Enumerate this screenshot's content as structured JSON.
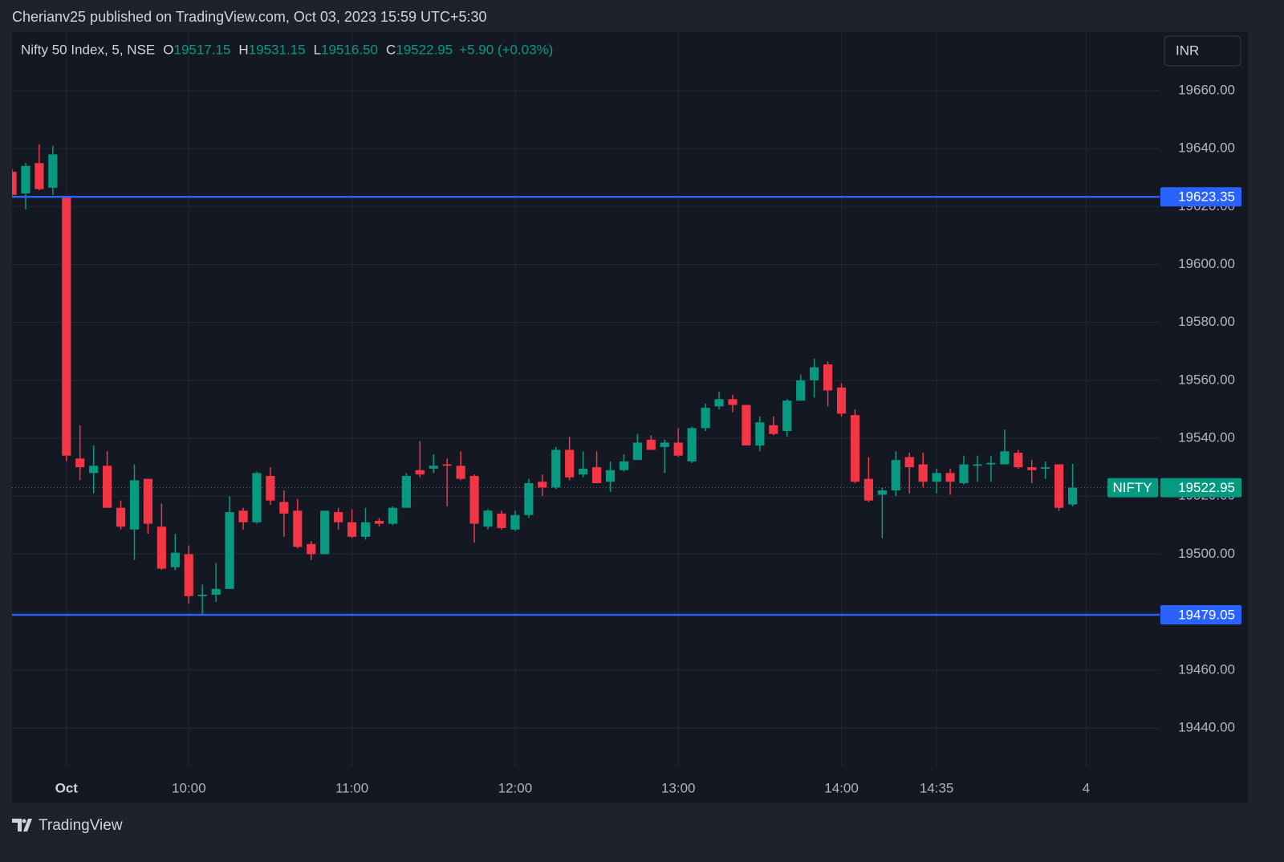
{
  "header": {
    "published": "Cherianv25 published on TradingView.com, Oct 03, 2023 15:59 UTC+5:30"
  },
  "legend": {
    "symbol": "Nifty 50 Index, 5, NSE",
    "open_label": "O",
    "open": "19517.15",
    "high_label": "H",
    "high": "19531.15",
    "low_label": "L",
    "low": "19516.50",
    "close_label": "C",
    "close": "19522.95",
    "change": "+5.90 (+0.03%)"
  },
  "currency": "INR",
  "footer": {
    "brand": "TradingView"
  },
  "chart_data": {
    "type": "candlestick",
    "up_color": "#089981",
    "down_color": "#f23645",
    "open": [
      19632,
      19624.5,
      19635,
      19626.5,
      19623.35,
      19533,
      19528,
      19530.5,
      19516,
      19508.5,
      19526,
      19509.5,
      19495.5,
      19500,
      19485.5,
      19486,
      19488,
      19515,
      19511,
      19527,
      19518,
      19515,
      19503.5,
      19500,
      19514.5,
      19511,
      19506,
      19511.5,
      19510.5,
      19516,
      19529,
      19529.5,
      19531,
      19530.5,
      19527,
      19509.5,
      19514,
      19508.5,
      19513.5,
      19525,
      19523,
      19536,
      19527.5,
      19530,
      19525,
      19529,
      19532.5,
      19539.5,
      19537,
      19538.5,
      19532,
      19543.5,
      19551,
      19553.5,
      19551.5,
      19537.5,
      19544.5,
      19542.5,
      19553,
      19560,
      19565.5,
      19557.5,
      19548,
      19526,
      19520.5,
      19522,
      19533.5,
      19531,
      19525,
      19528,
      19524.5,
      19530.5,
      19531,
      19531,
      19535,
      19530,
      19529.5,
      19531,
      19517.15
    ],
    "high": [
      19633,
      19635,
      19641.5,
      19641,
      19623.5,
      19544.5,
      19537.5,
      19535.5,
      19518.5,
      19531,
      19526,
      19517.5,
      19507,
      19503,
      19489.5,
      19497,
      19520,
      19516,
      19528.5,
      19530,
      19522,
      19519,
      19504.5,
      19515,
      19516,
      19515.5,
      19516,
      19512.5,
      19516.5,
      19528,
      19539,
      19534.5,
      19533,
      19535.5,
      19527.5,
      19515.5,
      19515,
      19515,
      19526,
      19527.5,
      19537,
      19540.5,
      19535.5,
      19535.5,
      19532,
      19534.5,
      19541.5,
      19541,
      19539.5,
      19543.5,
      19544,
      19552,
      19556,
      19555,
      19551.5,
      19547.5,
      19547.5,
      19553.5,
      19562,
      19567.5,
      19566.5,
      19559,
      19550,
      19533.5,
      19523,
      19535.5,
      19535,
      19535,
      19529.5,
      19529.5,
      19534,
      19534,
      19534,
      19543,
      19536,
      19532.5,
      19532,
      19531,
      19531.15
    ],
    "low": [
      19623,
      19619,
      19625.5,
      19624,
      19532,
      19525.5,
      19521,
      19516,
      19508.5,
      19498,
      19507,
      19494.5,
      19494.5,
      19483,
      19479.05,
      19483.5,
      19488,
      19508.5,
      19510.5,
      19517,
      19506,
      19502,
      19498,
      19500,
      19508.5,
      19505.5,
      19505,
      19509.5,
      19510,
      19516,
      19526.5,
      19528,
      19516.5,
      19525.5,
      19504,
      19508.5,
      19508.5,
      19508,
      19512.5,
      19520,
      19522.5,
      19525.5,
      19526.5,
      19524.5,
      19521.5,
      19528.5,
      19532.5,
      19536,
      19528,
      19533.5,
      19531.5,
      19542.5,
      19550,
      19549,
      19537.5,
      19535.5,
      19541,
      19540.5,
      19553,
      19554,
      19551,
      19547.5,
      19524.5,
      19518,
      19505.5,
      19520,
      19521,
      19523,
      19521,
      19520.5,
      19524,
      19525,
      19525,
      19531,
      19529.5,
      19524.5,
      19526,
      19515,
      19516.5
    ],
    "close": [
      19624,
      19634,
      19626,
      19638,
      19534,
      19530,
      19530.5,
      19516,
      19509.5,
      19525.5,
      19510.5,
      19495,
      19500.5,
      19485.5,
      19486,
      19488,
      19514.5,
      19511,
      19528,
      19518.5,
      19514,
      19502.5,
      19500,
      19515,
      19511,
      19506,
      19511,
      19510.5,
      19516,
      19527,
      19527.5,
      19530.5,
      19530.5,
      19526,
      19510.5,
      19515,
      19509,
      19513.5,
      19524.5,
      19523,
      19536,
      19526.5,
      19529.5,
      19524.5,
      19529,
      19532,
      19538.5,
      19536,
      19538.5,
      19534,
      19543.5,
      19550.5,
      19553.5,
      19551.5,
      19537.5,
      19545.5,
      19541.5,
      19553,
      19560,
      19564.5,
      19556.5,
      19548.5,
      19525,
      19518.5,
      19522,
      19532.5,
      19530,
      19525,
      19528,
      19525,
      19531,
      19531,
      19531.5,
      19535.5,
      19530,
      19529,
      19530,
      19516,
      19522.95
    ],
    "xlim": [
      0,
      84.4
    ],
    "xticks": [
      {
        "value": 4,
        "label": "Oct"
      },
      {
        "value": 13,
        "label": "10:00"
      },
      {
        "value": 25,
        "label": "11:00"
      },
      {
        "value": 37,
        "label": "12:00"
      },
      {
        "value": 49,
        "label": "13:00"
      },
      {
        "value": 61,
        "label": "14:00"
      },
      {
        "value": 68,
        "label": "14:35"
      },
      {
        "value": 79,
        "label": "4"
      }
    ],
    "ylim": [
      19426.7,
      19680.2
    ],
    "yticks": [
      {
        "value": 19440,
        "label": "19440.00"
      },
      {
        "value": 19460,
        "label": "19460.00"
      },
      {
        "value": 19480,
        "label": "19480.00"
      },
      {
        "value": 19500,
        "label": "19500.00"
      },
      {
        "value": 19520,
        "label": "19520.00"
      },
      {
        "value": 19540,
        "label": "19540.00"
      },
      {
        "value": 19560,
        "label": "19560.00"
      },
      {
        "value": 19580,
        "label": "19580.00"
      },
      {
        "value": 19600,
        "label": "19600.00"
      },
      {
        "value": 19620,
        "label": "19620.00"
      },
      {
        "value": 19640,
        "label": "19640.00"
      },
      {
        "value": 19660,
        "label": "19660.00"
      }
    ],
    "grid": true,
    "levels": [
      19623.35,
      19479.05
    ],
    "level_color": "#2962ff",
    "last_price": {
      "name": "NIFTY",
      "value": 19522.95
    }
  }
}
